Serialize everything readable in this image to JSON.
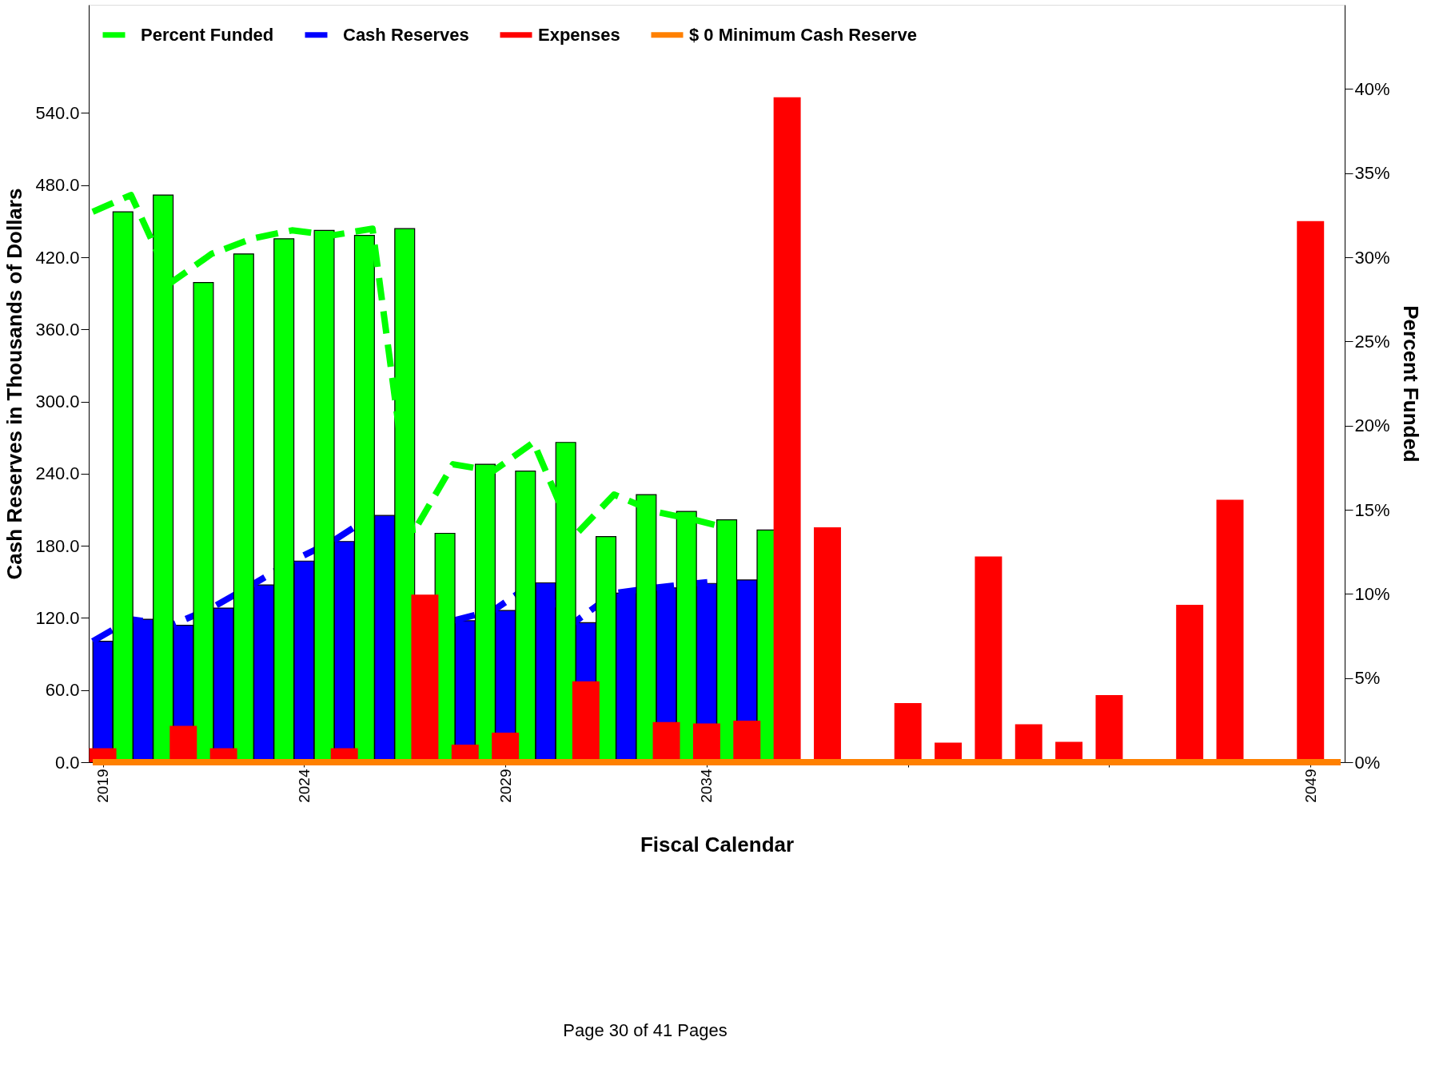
{
  "chart_data": {
    "type": "bar",
    "xlabel": "Fiscal Calendar",
    "ylabel": "Cash Reserves in Thousands of Dollars",
    "y2label": "Percent Funded",
    "annotations": [
      "Page 30 of 41 Pages"
    ],
    "xlim": [
      2018.75,
      2049.75
    ],
    "xticks": [
      2019,
      2024,
      2029,
      2034,
      {
        "value": 2039,
        "label": null
      },
      {
        "value": 2044,
        "label": null
      },
      2049
    ],
    "ylim": [
      0,
      630
    ],
    "yticks": [
      {
        "value": 0,
        "label": "0.0"
      },
      {
        "value": 60,
        "label": "60.0"
      },
      {
        "value": 120,
        "label": "120.0"
      },
      {
        "value": 180,
        "label": "180.0"
      },
      {
        "value": 240,
        "label": "240.0"
      },
      {
        "value": 300,
        "label": "300.0"
      },
      {
        "value": 360,
        "label": "360.0"
      },
      {
        "value": 420,
        "label": "420.0"
      },
      {
        "value": 480,
        "label": "480.0"
      },
      {
        "value": 540,
        "label": "540.0"
      }
    ],
    "y2lim": [
      0,
      45
    ],
    "y2ticks": [
      {
        "value": 0,
        "label": "0%"
      },
      {
        "value": 5,
        "label": "5%"
      },
      {
        "value": 10,
        "label": "10%"
      },
      {
        "value": 15,
        "label": "15%"
      },
      {
        "value": 20,
        "label": "20%"
      },
      {
        "value": 25,
        "label": "25%"
      },
      {
        "value": 30,
        "label": "30%"
      },
      {
        "value": 35,
        "label": "35%"
      },
      {
        "value": 40,
        "label": "40%"
      }
    ],
    "grid": false,
    "legend": "top",
    "marker": "none",
    "series": [
      {
        "axis": "y2",
        "color": "#00ff00",
        "x": [
          2019.5,
          2020.5,
          2021.5,
          2022.5,
          2023.5,
          2024.5,
          2025.5,
          2026.5,
          2027.5,
          2028.5,
          2029.5,
          2030.5,
          2031.5,
          2032.5,
          2033.5,
          2034.5,
          2035.5
        ],
        "values": [
          32.7,
          33.7,
          28.5,
          30.2,
          31.1,
          31.6,
          31.3,
          31.7,
          13.6,
          17.7,
          17.3,
          19.0,
          13.4,
          15.9,
          14.9,
          14.4,
          13.8
        ]
      },
      {
        "type": "line",
        "axis": "y2",
        "name": "Percent Funded",
        "color": "#00ff00",
        "line_style": "dashed",
        "x": [
          2018.75,
          2019.7,
          2020.7,
          2021.7,
          2022.7,
          2023.7,
          2024.7,
          2025.7,
          2026.7,
          2027.7,
          2028.7,
          2029.7,
          2030.7,
          2031.7,
          2032.7,
          2033.7,
          2034.7
        ],
        "values": [
          32.7,
          33.7,
          28.5,
          30.2,
          31.1,
          31.6,
          31.3,
          31.7,
          13.6,
          17.7,
          17.3,
          19.0,
          13.4,
          15.9,
          14.9,
          14.4,
          13.8
        ]
      },
      {
        "color": "#0000ff",
        "x": [
          2019,
          2020,
          2021,
          2022,
          2023,
          2024,
          2025,
          2026,
          2027,
          2028,
          2029,
          2030,
          2031,
          2032,
          2033,
          2034,
          2035
        ],
        "values": [
          100.6,
          118.9,
          113.9,
          128.2,
          147.4,
          167.3,
          183.6,
          205.2,
          null,
          117.7,
          126.2,
          149.2,
          116.0,
          140.6,
          145.0,
          148.7,
          151.6
        ]
      },
      {
        "type": "line",
        "name": "Cash Reserves",
        "color": "#0000ff",
        "line_style": "dashed",
        "x": [
          2018.75,
          2019.7,
          2020.7,
          2021.7,
          2022.7,
          2023.7,
          2024.7,
          2025.7,
          2026.7,
          2027.7,
          2028.7,
          2029.7,
          2030.7,
          2031.7,
          2032.7,
          2033.7,
          2034.7
        ],
        "values": [
          100.6,
          118.9,
          113.9,
          128.2,
          147.4,
          167.3,
          183.6,
          205.2,
          null,
          117.7,
          126.2,
          149.2,
          116.0,
          140.6,
          145.0,
          148.7,
          151.6
        ]
      },
      {
        "name": "Expenses",
        "color": "#ff0000",
        "x": [
          2019,
          2020,
          2021,
          2022,
          2023,
          2024,
          2025,
          2026,
          2027,
          2028,
          2029,
          2030,
          2031,
          2032,
          2033,
          2034,
          2035,
          2036,
          2037,
          2038,
          2039,
          2040,
          2041,
          2042,
          2043,
          2044,
          2045,
          2046,
          2047,
          2048,
          2049
        ],
        "values": [
          11.6,
          null,
          30.2,
          11.6,
          null,
          null,
          11.6,
          null,
          139.4,
          14.6,
          24.6,
          null,
          67.3,
          null,
          33.4,
          32.3,
          34.5,
          553,
          195.4,
          null,
          49.1,
          16.3,
          171.1,
          31.5,
          17.0,
          55.9,
          null,
          131.0,
          218.3,
          null,
          450.1
        ]
      },
      {
        "type": "line",
        "name": "$ 0 Minimum Cash Reserve",
        "color": "#ff8000",
        "line_style": "solid",
        "x": [
          2018.75,
          2049.75
        ],
        "values": [
          0,
          0
        ]
      }
    ]
  }
}
